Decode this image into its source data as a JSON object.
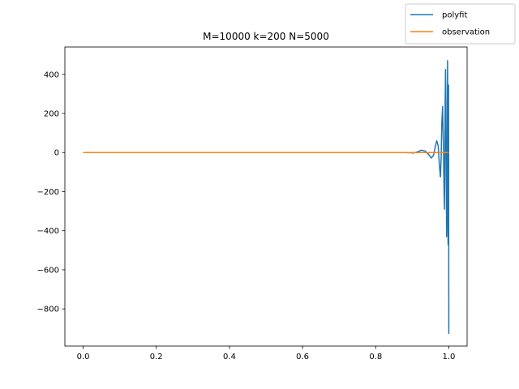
{
  "chart_data": {
    "type": "line",
    "title": "M=10000 k=200 N=5000",
    "xlabel": "",
    "ylabel": "",
    "xlim": [
      -0.05,
      1.05
    ],
    "ylim": [
      -990,
      540
    ],
    "xticks": [
      0.0,
      0.2,
      0.4,
      0.6,
      0.8,
      1.0
    ],
    "xtick_labels": [
      "0.0",
      "0.2",
      "0.4",
      "0.6",
      "0.8",
      "1.0"
    ],
    "yticks": [
      400,
      200,
      0,
      -200,
      -400,
      -600,
      -800
    ],
    "ytick_labels": [
      "400",
      "200",
      "0",
      "−200",
      "−400",
      "−600",
      "−800"
    ],
    "grid": false,
    "legend_position": "top-right",
    "series": [
      {
        "name": "polyfit",
        "color": "#1f77b4",
        "points": [
          [
            0.0,
            0
          ],
          [
            0.2,
            0
          ],
          [
            0.4,
            0
          ],
          [
            0.6,
            0
          ],
          [
            0.8,
            0
          ],
          [
            0.88,
            0
          ],
          [
            0.905,
            -2
          ],
          [
            0.915,
            4
          ],
          [
            0.925,
            12
          ],
          [
            0.935,
            8
          ],
          [
            0.945,
            -10
          ],
          [
            0.952,
            -28
          ],
          [
            0.958,
            -15
          ],
          [
            0.963,
            30
          ],
          [
            0.967,
            60
          ],
          [
            0.971,
            35
          ],
          [
            0.974,
            -60
          ],
          [
            0.977,
            -125
          ],
          [
            0.979,
            -30
          ],
          [
            0.981,
            160
          ],
          [
            0.983,
            235
          ],
          [
            0.985,
            60
          ],
          [
            0.987,
            -200
          ],
          [
            0.988,
            -290
          ],
          [
            0.989,
            -100
          ],
          [
            0.99,
            250
          ],
          [
            0.991,
            425
          ],
          [
            0.992,
            260
          ],
          [
            0.993,
            -150
          ],
          [
            0.994,
            -430
          ],
          [
            0.995,
            -300
          ],
          [
            0.996,
            180
          ],
          [
            0.9965,
            470
          ],
          [
            0.997,
            300
          ],
          [
            0.9975,
            -200
          ],
          [
            0.998,
            -470
          ],
          [
            0.9985,
            -250
          ],
          [
            0.999,
            200
          ],
          [
            0.9993,
            345
          ],
          [
            0.9996,
            0
          ],
          [
            0.9998,
            -500
          ],
          [
            1.0,
            -925
          ],
          [
            1.0,
            -770
          ]
        ]
      },
      {
        "name": "observation",
        "color": "#ff7f0e",
        "points": [
          [
            0.0,
            0
          ],
          [
            1.0,
            0
          ]
        ]
      }
    ]
  }
}
